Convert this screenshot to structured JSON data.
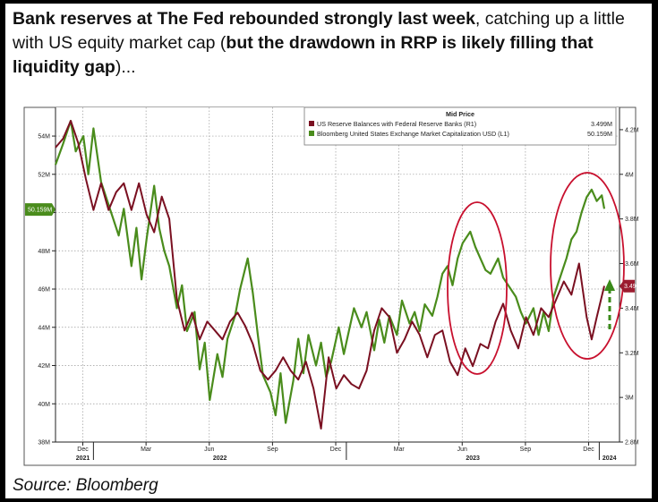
{
  "headline": {
    "bold1": "Bank reserves at The Fed rebounded strongly last week",
    "normal1": ", catching up a little with US equity market cap (",
    "bold2": "but the drawdown in RRP is likely filling that liquidity gap",
    "normal2": ")..."
  },
  "source": "Source: Bloomberg",
  "chart_data": {
    "type": "line",
    "legend": {
      "title": "Mid Price",
      "placement": "top-right",
      "entries": [
        {
          "label": "US Reserve Balances with Federal Reserve Banks  (R1)",
          "value": "3.499M",
          "color": "#7a1021"
        },
        {
          "label": "Bloomberg United States Exchange Market Capitalization USD  (L1)",
          "value": "50.159M",
          "color": "#4a8c1c"
        }
      ]
    },
    "left_axis": {
      "ticks": [
        "54M",
        "52M",
        "50M",
        "48M",
        "46M",
        "44M",
        "42M",
        "40M",
        "38M"
      ],
      "range": [
        38,
        55.5
      ],
      "current_label": "50.159M",
      "current_value": 50.159
    },
    "right_axis": {
      "ticks": [
        "4.2M",
        "4M",
        "3.8M",
        "3.6M",
        "3.4M",
        "3.2M",
        "3M",
        "2.8M"
      ],
      "range": [
        2.8,
        4.3
      ],
      "current_label": "3.499M",
      "current_value": 3.499
    },
    "x_axis": {
      "months": [
        "Dec",
        "Mar",
        "Jun",
        "Sep",
        "Dec",
        "Mar",
        "Jun",
        "Sep",
        "Dec"
      ],
      "years": [
        "2021",
        "2022",
        "2023",
        "2024"
      ],
      "range": [
        2021.85,
        2024.08
      ]
    },
    "series": [
      {
        "name": "Bloomberg United States Exchange Market Capitalization USD",
        "axis": "left",
        "color": "#4a8c1c",
        "points": [
          [
            2021.85,
            52.5
          ],
          [
            2021.88,
            53.6
          ],
          [
            2021.91,
            54.8
          ],
          [
            2021.93,
            53.2
          ],
          [
            2021.96,
            54.0
          ],
          [
            2021.98,
            52.0
          ],
          [
            2022.0,
            54.4
          ],
          [
            2022.03,
            51.6
          ],
          [
            2022.05,
            50.8
          ],
          [
            2022.08,
            49.6
          ],
          [
            2022.1,
            48.8
          ],
          [
            2022.12,
            50.2
          ],
          [
            2022.15,
            47.2
          ],
          [
            2022.17,
            49.2
          ],
          [
            2022.19,
            46.5
          ],
          [
            2022.21,
            48.6
          ],
          [
            2022.24,
            51.4
          ],
          [
            2022.26,
            49.2
          ],
          [
            2022.28,
            48.0
          ],
          [
            2022.3,
            47.2
          ],
          [
            2022.33,
            45.0
          ],
          [
            2022.35,
            46.2
          ],
          [
            2022.37,
            43.8
          ],
          [
            2022.4,
            44.8
          ],
          [
            2022.42,
            41.8
          ],
          [
            2022.44,
            43.2
          ],
          [
            2022.46,
            40.2
          ],
          [
            2022.49,
            42.6
          ],
          [
            2022.51,
            41.4
          ],
          [
            2022.53,
            43.4
          ],
          [
            2022.56,
            44.6
          ],
          [
            2022.58,
            46.0
          ],
          [
            2022.61,
            47.6
          ],
          [
            2022.63,
            45.8
          ],
          [
            2022.65,
            43.6
          ],
          [
            2022.67,
            41.5
          ],
          [
            2022.7,
            40.6
          ],
          [
            2022.72,
            39.4
          ],
          [
            2022.74,
            41.6
          ],
          [
            2022.76,
            39.0
          ],
          [
            2022.79,
            41.2
          ],
          [
            2022.81,
            43.4
          ],
          [
            2022.83,
            41.6
          ],
          [
            2022.85,
            43.6
          ],
          [
            2022.88,
            42.0
          ],
          [
            2022.9,
            43.2
          ],
          [
            2022.92,
            41.4
          ],
          [
            2022.94,
            42.2
          ],
          [
            2022.97,
            44.0
          ],
          [
            2022.99,
            42.6
          ],
          [
            2023.01,
            43.8
          ],
          [
            2023.03,
            45.0
          ],
          [
            2023.06,
            44.0
          ],
          [
            2023.08,
            44.8
          ],
          [
            2023.11,
            42.8
          ],
          [
            2023.13,
            44.4
          ],
          [
            2023.15,
            43.2
          ],
          [
            2023.17,
            44.6
          ],
          [
            2023.2,
            43.6
          ],
          [
            2023.22,
            45.4
          ],
          [
            2023.25,
            44.2
          ],
          [
            2023.27,
            44.8
          ],
          [
            2023.29,
            43.8
          ],
          [
            2023.31,
            45.2
          ],
          [
            2023.34,
            44.6
          ],
          [
            2023.36,
            45.6
          ],
          [
            2023.38,
            46.8
          ],
          [
            2023.4,
            47.2
          ],
          [
            2023.42,
            46.2
          ],
          [
            2023.44,
            47.6
          ],
          [
            2023.46,
            48.4
          ],
          [
            2023.49,
            49.0
          ],
          [
            2023.51,
            48.2
          ],
          [
            2023.53,
            47.6
          ],
          [
            2023.55,
            47.0
          ],
          [
            2023.57,
            46.8
          ],
          [
            2023.6,
            47.6
          ],
          [
            2023.62,
            46.6
          ],
          [
            2023.65,
            46.0
          ],
          [
            2023.67,
            45.6
          ],
          [
            2023.69,
            44.8
          ],
          [
            2023.71,
            44.2
          ],
          [
            2023.74,
            45.0
          ],
          [
            2023.76,
            43.6
          ],
          [
            2023.78,
            44.8
          ],
          [
            2023.8,
            43.8
          ],
          [
            2023.82,
            45.6
          ],
          [
            2023.85,
            46.8
          ],
          [
            2023.87,
            47.6
          ],
          [
            2023.89,
            48.6
          ],
          [
            2023.91,
            49.0
          ],
          [
            2023.93,
            50.0
          ],
          [
            2023.95,
            50.8
          ],
          [
            2023.97,
            51.2
          ],
          [
            2023.99,
            50.6
          ],
          [
            2024.01,
            50.9
          ],
          [
            2024.02,
            50.2
          ]
        ]
      },
      {
        "name": "US Reserve Balances with Federal Reserve Banks",
        "axis": "right",
        "color": "#7a1021",
        "points": [
          [
            2021.85,
            4.12
          ],
          [
            2021.88,
            4.16
          ],
          [
            2021.91,
            4.24
          ],
          [
            2021.94,
            4.14
          ],
          [
            2021.97,
            3.98
          ],
          [
            2022.0,
            3.84
          ],
          [
            2022.03,
            3.96
          ],
          [
            2022.06,
            3.84
          ],
          [
            2022.09,
            3.92
          ],
          [
            2022.12,
            3.96
          ],
          [
            2022.15,
            3.84
          ],
          [
            2022.18,
            3.96
          ],
          [
            2022.21,
            3.82
          ],
          [
            2022.24,
            3.74
          ],
          [
            2022.27,
            3.9
          ],
          [
            2022.3,
            3.8
          ],
          [
            2022.33,
            3.44
          ],
          [
            2022.36,
            3.3
          ],
          [
            2022.39,
            3.38
          ],
          [
            2022.42,
            3.26
          ],
          [
            2022.45,
            3.34
          ],
          [
            2022.48,
            3.3
          ],
          [
            2022.51,
            3.26
          ],
          [
            2022.54,
            3.34
          ],
          [
            2022.57,
            3.38
          ],
          [
            2022.6,
            3.32
          ],
          [
            2022.63,
            3.24
          ],
          [
            2022.66,
            3.12
          ],
          [
            2022.69,
            3.08
          ],
          [
            2022.72,
            3.12
          ],
          [
            2022.75,
            3.18
          ],
          [
            2022.78,
            3.12
          ],
          [
            2022.81,
            3.08
          ],
          [
            2022.84,
            3.16
          ],
          [
            2022.87,
            3.04
          ],
          [
            2022.9,
            2.86
          ],
          [
            2022.93,
            3.18
          ],
          [
            2022.96,
            3.04
          ],
          [
            2022.99,
            3.1
          ],
          [
            2023.02,
            3.06
          ],
          [
            2023.05,
            3.04
          ],
          [
            2023.08,
            3.12
          ],
          [
            2023.11,
            3.3
          ],
          [
            2023.14,
            3.4
          ],
          [
            2023.17,
            3.36
          ],
          [
            2023.2,
            3.2
          ],
          [
            2023.23,
            3.26
          ],
          [
            2023.26,
            3.34
          ],
          [
            2023.29,
            3.28
          ],
          [
            2023.32,
            3.18
          ],
          [
            2023.35,
            3.28
          ],
          [
            2023.38,
            3.3
          ],
          [
            2023.41,
            3.16
          ],
          [
            2023.44,
            3.1
          ],
          [
            2023.47,
            3.22
          ],
          [
            2023.5,
            3.14
          ],
          [
            2023.53,
            3.24
          ],
          [
            2023.56,
            3.22
          ],
          [
            2023.59,
            3.34
          ],
          [
            2023.62,
            3.42
          ],
          [
            2023.65,
            3.3
          ],
          [
            2023.68,
            3.22
          ],
          [
            2023.71,
            3.36
          ],
          [
            2023.74,
            3.28
          ],
          [
            2023.77,
            3.4
          ],
          [
            2023.8,
            3.36
          ],
          [
            2023.83,
            3.44
          ],
          [
            2023.86,
            3.52
          ],
          [
            2023.89,
            3.46
          ],
          [
            2023.92,
            3.6
          ],
          [
            2023.95,
            3.36
          ],
          [
            2023.97,
            3.26
          ],
          [
            2023.99,
            3.36
          ],
          [
            2024.02,
            3.5
          ]
        ]
      }
    ]
  }
}
